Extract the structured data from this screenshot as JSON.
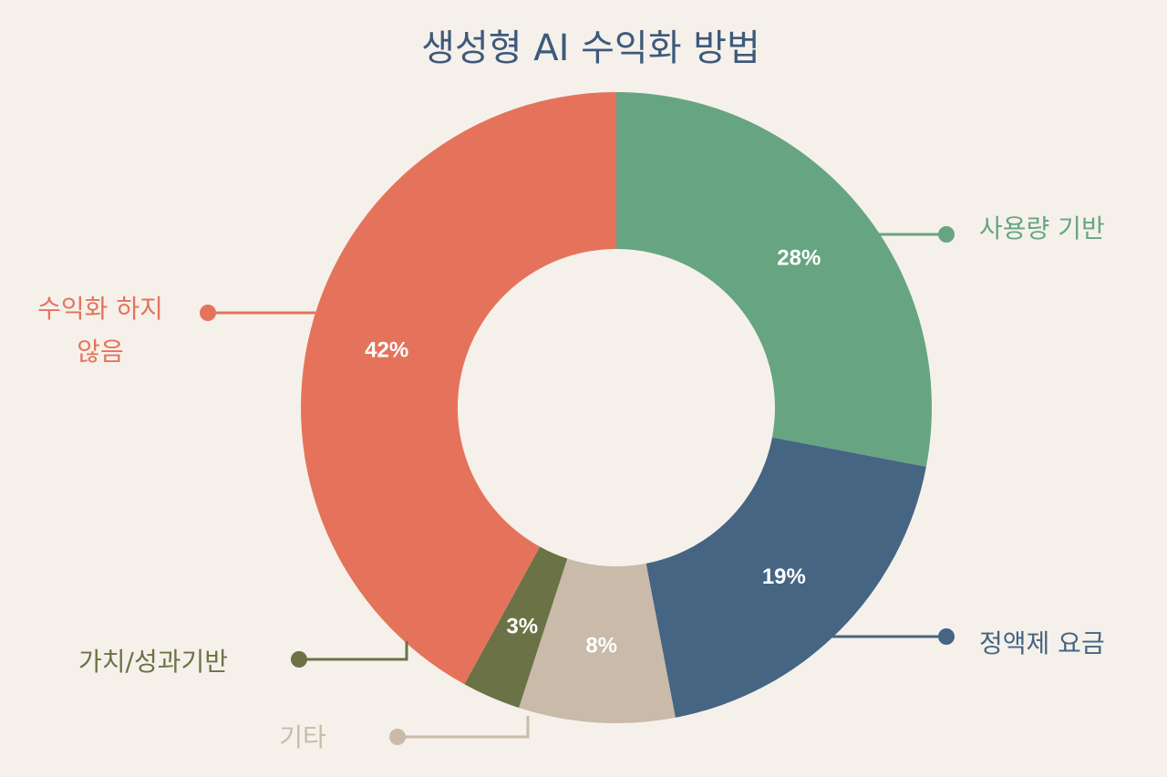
{
  "chart_data": {
    "type": "pie",
    "variant": "donut",
    "title": "생성형 AI 수익화  방법",
    "title_color": "#3d5a7c",
    "slices": [
      {
        "key": "usage",
        "label": "사용량 기반",
        "value": 28,
        "display": "28%",
        "color": "#67a582"
      },
      {
        "key": "flat",
        "label": "정액제 요금",
        "value": 19,
        "display": "19%",
        "color": "#456583"
      },
      {
        "key": "other",
        "label": "기타",
        "value": 8,
        "display": "8%",
        "color": "#c9baa9"
      },
      {
        "key": "value",
        "label": "가치/성과기반",
        "value": 3,
        "display": "3%",
        "color": "#6b7245"
      },
      {
        "key": "none",
        "label": [
          "수익화 하지",
          "않음"
        ],
        "value": 42,
        "display": "42%",
        "color": "#e5735c"
      }
    ]
  }
}
